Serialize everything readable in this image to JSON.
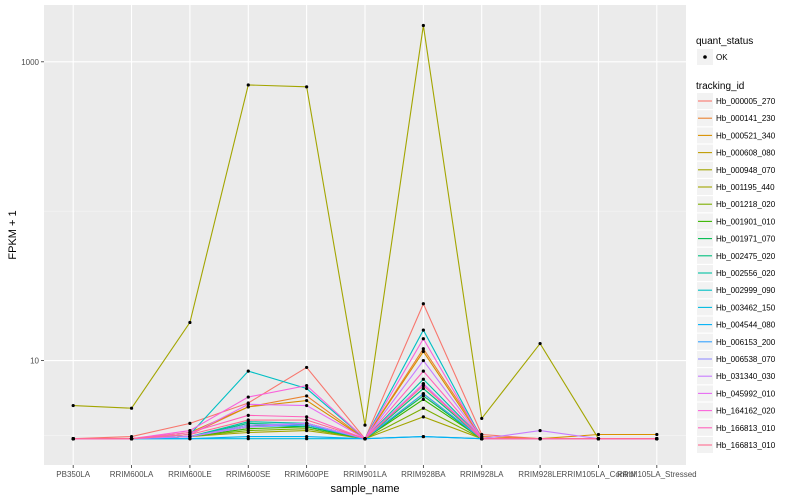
{
  "chart_data": {
    "type": "line",
    "title": "",
    "xlabel": "sample_name",
    "ylabel": "FPKM + 1",
    "yscale": "log10",
    "ylim": [
      2.0,
      2400
    ],
    "yticks": [
      1000,
      10
    ],
    "ytick_labels": [
      "1000",
      "10"
    ],
    "categories": [
      "PB350LA",
      "RRIM600LA",
      "RRIM600LE",
      "RRIM600SE",
      "RRIM600PE",
      "RRIM901LA",
      "RRIM928BA",
      "RRIM928LA",
      "RRIM928LE",
      "RRIM105LA_Control",
      "RRIM105LA_Stressed"
    ],
    "shape_legend": {
      "title": "quant_status",
      "items": [
        "OK"
      ]
    },
    "color_legend_title": "tracking_id",
    "series": [
      {
        "name": "Hb_000005_270",
        "color": "#F8766D",
        "values": [
          3.0,
          3.1,
          3.8,
          5.2,
          9.0,
          3.0,
          24.0,
          3.2,
          3.0,
          3.0,
          3.0
        ]
      },
      {
        "name": "Hb_000141_230",
        "color": "#EA8331",
        "values": [
          3.0,
          3.0,
          3.2,
          4.9,
          5.8,
          3.0,
          12.0,
          3.1,
          3.0,
          3.0,
          3.0
        ]
      },
      {
        "name": "Hb_000521_340",
        "color": "#D89000",
        "values": [
          3.0,
          3.0,
          3.3,
          4.9,
          5.4,
          3.0,
          11.5,
          3.0,
          3.0,
          3.2,
          3.2
        ]
      },
      {
        "name": "Hb_000608_080",
        "color": "#C09B00",
        "values": [
          3.0,
          3.0,
          3.1,
          3.6,
          3.8,
          3.0,
          6.0,
          3.0,
          3.0,
          3.0,
          3.0
        ]
      },
      {
        "name": "Hb_000948_070",
        "color": "#A3A500",
        "values": [
          3.0,
          3.0,
          3.1,
          3.3,
          3.4,
          3.0,
          4.2,
          3.0,
          3.0,
          3.0,
          3.0
        ]
      },
      {
        "name": "Hb_001195_440",
        "color": "#A3A500",
        "values": [
          5.0,
          4.8,
          18.0,
          700.0,
          680.0,
          3.7,
          1750.0,
          4.1,
          13.0,
          3.0,
          3.0
        ]
      },
      {
        "name": "Hb_001218_020",
        "color": "#7CAE00",
        "values": [
          3.0,
          3.0,
          3.1,
          3.4,
          3.5,
          3.0,
          4.8,
          3.0,
          3.0,
          3.0,
          3.0
        ]
      },
      {
        "name": "Hb_001901_010",
        "color": "#39B600",
        "values": [
          3.0,
          3.0,
          3.1,
          3.5,
          3.6,
          3.0,
          5.5,
          3.0,
          3.0,
          3.0,
          3.0
        ]
      },
      {
        "name": "Hb_001971_070",
        "color": "#00BB4E",
        "values": [
          3.0,
          3.0,
          3.1,
          3.7,
          3.6,
          3.0,
          5.8,
          3.0,
          3.0,
          3.0,
          3.0
        ]
      },
      {
        "name": "Hb_002475_020",
        "color": "#00BF7D",
        "values": [
          3.0,
          3.0,
          3.1,
          3.8,
          3.7,
          3.0,
          6.5,
          3.0,
          3.0,
          3.0,
          3.0
        ]
      },
      {
        "name": "Hb_002556_020",
        "color": "#00C1A3",
        "values": [
          3.0,
          3.0,
          3.1,
          3.9,
          3.8,
          3.0,
          7.5,
          3.0,
          3.0,
          3.0,
          3.0
        ]
      },
      {
        "name": "Hb_002999_090",
        "color": "#00BFC4",
        "values": [
          3.0,
          3.0,
          3.2,
          8.5,
          6.5,
          3.0,
          16.0,
          3.0,
          3.0,
          3.0,
          3.0
        ]
      },
      {
        "name": "Hb_003462_150",
        "color": "#00BAE0",
        "values": [
          3.0,
          3.0,
          3.0,
          3.0,
          3.0,
          3.0,
          3.1,
          3.0,
          3.0,
          3.0,
          3.0
        ]
      },
      {
        "name": "Hb_004544_080",
        "color": "#00B0F6",
        "values": [
          3.0,
          3.0,
          3.0,
          3.1,
          3.1,
          3.0,
          3.1,
          3.0,
          3.0,
          3.0,
          3.0
        ]
      },
      {
        "name": "Hb_006153_200",
        "color": "#35A2FF",
        "values": [
          3.0,
          3.0,
          3.1,
          3.6,
          3.7,
          3.0,
          6.0,
          3.0,
          3.0,
          3.0,
          3.0
        ]
      },
      {
        "name": "Hb_006538_070",
        "color": "#9590FF",
        "values": [
          3.0,
          3.0,
          3.1,
          3.7,
          3.8,
          3.0,
          7.0,
          3.0,
          3.0,
          3.0,
          3.0
        ]
      },
      {
        "name": "Hb_031340_030",
        "color": "#C77CFF",
        "values": [
          3.0,
          3.0,
          3.1,
          3.6,
          3.8,
          3.0,
          10.0,
          3.0,
          3.4,
          3.0,
          3.0
        ]
      },
      {
        "name": "Hb_045992_010",
        "color": "#E76BF3",
        "values": [
          3.0,
          3.0,
          3.2,
          5.1,
          5.0,
          3.0,
          7.0,
          3.0,
          3.0,
          3.0,
          3.0
        ]
      },
      {
        "name": "Hb_164162_020",
        "color": "#FA62DB",
        "values": [
          3.0,
          3.0,
          3.4,
          5.7,
          6.8,
          3.0,
          14.0,
          3.0,
          3.0,
          3.0,
          3.0
        ]
      },
      {
        "name": "Hb_166813_010",
        "color": "#FF62BC",
        "values": [
          3.0,
          3.0,
          3.3,
          4.3,
          4.2,
          3.0,
          8.5,
          3.0,
          3.0,
          3.0,
          3.0
        ]
      },
      {
        "name": "Hb_166813_010",
        "color": "#FF6C91",
        "values": [
          3.0,
          3.0,
          3.2,
          4.0,
          4.0,
          3.0,
          6.8,
          3.0,
          3.0,
          3.0,
          3.0
        ]
      }
    ]
  }
}
